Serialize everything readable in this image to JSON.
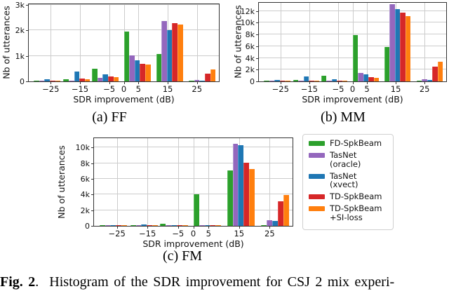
{
  "figure": {
    "caption": {
      "label": "Fig. 2",
      "rest": ".  Histogram of the SDR improvement for CSJ 2 mix experi-"
    }
  },
  "colors": {
    "grid": "#cccccc",
    "spine": "#333333",
    "series": [
      "#2ca02c",
      "#9467bd",
      "#1f77b4",
      "#d62728",
      "#ff7f0e"
    ],
    "series_edge": [
      "#5cbd5c",
      "#b49bd2",
      "#5d9ed2",
      "#e15658",
      "#ffa04e"
    ]
  },
  "legend": {
    "items": [
      {
        "label": "FD-SpkBeam",
        "color": "#2ca02c"
      },
      {
        "label": "TasNet\n(oracle)",
        "color": "#9467bd"
      },
      {
        "label": "TasNet\n(xvect)",
        "color": "#1f77b4"
      },
      {
        "label": "TD-SpkBeam",
        "color": "#d62728"
      },
      {
        "label": "TD-SpkBeam\n+SI-loss",
        "color": "#ff7f0e"
      }
    ]
  },
  "chart_data": [
    {
      "id": "ff",
      "type": "bar",
      "subcaption": "(a) FF",
      "xlabel": "SDR improvement (dB)",
      "ylabel": "Nb of utterances",
      "xlim": [
        -32.5,
        32.5
      ],
      "ylim": [
        0,
        3030
      ],
      "x_ticks": [
        -25,
        -15,
        -5,
        0,
        5,
        15,
        25
      ],
      "x_tick_labels": [
        "−25",
        "−15",
        "−5",
        "0",
        "5",
        "15",
        "25"
      ],
      "y_ticks": [
        0,
        1000,
        2000,
        3000
      ],
      "y_tick_labels": [
        "0",
        "1k",
        "2k",
        "3k"
      ],
      "grid": true,
      "legend_position": "none",
      "categories": [
        -25,
        -15,
        -5,
        5,
        15,
        25
      ],
      "group_centers": [
        -26.2,
        -16.1,
        -6.3,
        4.6,
        15.6,
        26.8
      ],
      "series": [
        {
          "name": "FD-SpkBeam",
          "values": [
            15,
            90,
            490,
            1950,
            1080,
            10
          ]
        },
        {
          "name": "TasNet (oracle)",
          "values": [
            10,
            20,
            130,
            1030,
            2380,
            50
          ]
        },
        {
          "name": "TasNet (xvect)",
          "values": [
            80,
            380,
            280,
            830,
            2010,
            35
          ]
        },
        {
          "name": "TD-SpkBeam",
          "values": [
            40,
            115,
            185,
            700,
            2280,
            300
          ]
        },
        {
          "name": "TD-SpkBeam +SI-loss",
          "values": [
            30,
            75,
            170,
            650,
            2230,
            470
          ]
        }
      ]
    },
    {
      "id": "mm",
      "type": "bar",
      "subcaption": "(b) MM",
      "xlabel": "SDR improvement (dB)",
      "ylabel": "Nb of utterances",
      "xlim": [
        -32.5,
        32.5
      ],
      "ylim": [
        0,
        13400
      ],
      "x_ticks": [
        -25,
        -15,
        -5,
        0,
        5,
        15,
        25
      ],
      "x_tick_labels": [
        "−25",
        "−15",
        "−5",
        "0",
        "5",
        "15",
        "25"
      ],
      "y_ticks": [
        0,
        2000,
        4000,
        6000,
        8000,
        10000,
        12000
      ],
      "y_tick_labels": [
        "0",
        "2k",
        "4k",
        "6k",
        "8k",
        "10k",
        "12k"
      ],
      "grid": true,
      "legend_position": "none",
      "categories": [
        -25,
        -15,
        -5,
        5,
        15,
        25
      ],
      "group_centers": [
        -26.2,
        -16.1,
        -6.3,
        4.6,
        15.6,
        26.8
      ],
      "series": [
        {
          "name": "FD-SpkBeam",
          "values": [
            30,
            220,
            1000,
            7900,
            5900,
            20
          ]
        },
        {
          "name": "TasNet (oracle)",
          "values": [
            20,
            40,
            160,
            1400,
            13150,
            320
          ]
        },
        {
          "name": "TasNet (xvect)",
          "values": [
            230,
            830,
            310,
            1250,
            12350,
            240
          ]
        },
        {
          "name": "TD-SpkBeam",
          "values": [
            60,
            120,
            120,
            700,
            11750,
            2500
          ]
        },
        {
          "name": "TD-SpkBeam +SI-loss",
          "values": [
            50,
            100,
            110,
            550,
            11100,
            3400
          ]
        }
      ]
    },
    {
      "id": "fm",
      "type": "bar",
      "subcaption": "(c) FM",
      "xlabel": "SDR improvement (dB)",
      "ylabel": "Nb of utterances",
      "xlim": [
        -32.5,
        32.5
      ],
      "ylim": [
        0,
        11200
      ],
      "x_ticks": [
        -25,
        -15,
        -5,
        0,
        5,
        15,
        25
      ],
      "x_tick_labels": [
        "−25",
        "−15",
        "−5",
        "0",
        "5",
        "15",
        "25"
      ],
      "y_ticks": [
        0,
        2000,
        4000,
        6000,
        8000,
        10000
      ],
      "y_tick_labels": [
        "0",
        "2k",
        "4k",
        "6k",
        "8k",
        "10k"
      ],
      "grid": true,
      "legend_position": "right",
      "categories": [
        -25,
        -15,
        -5,
        5,
        15,
        25
      ],
      "group_centers": [
        -26.2,
        -16.1,
        -6.3,
        4.6,
        15.6,
        26.8
      ],
      "series": [
        {
          "name": "FD-SpkBeam",
          "values": [
            10,
            30,
            250,
            4000,
            7050,
            15
          ]
        },
        {
          "name": "TasNet (oracle)",
          "values": [
            5,
            10,
            15,
            120,
            10500,
            700
          ]
        },
        {
          "name": "TasNet (xvect)",
          "values": [
            60,
            200,
            30,
            100,
            10300,
            660
          ]
        },
        {
          "name": "TD-SpkBeam",
          "values": [
            10,
            20,
            15,
            60,
            8100,
            3150
          ]
        },
        {
          "name": "TD-SpkBeam +SI-loss",
          "values": [
            10,
            20,
            15,
            90,
            7250,
            3950
          ]
        }
      ]
    }
  ]
}
